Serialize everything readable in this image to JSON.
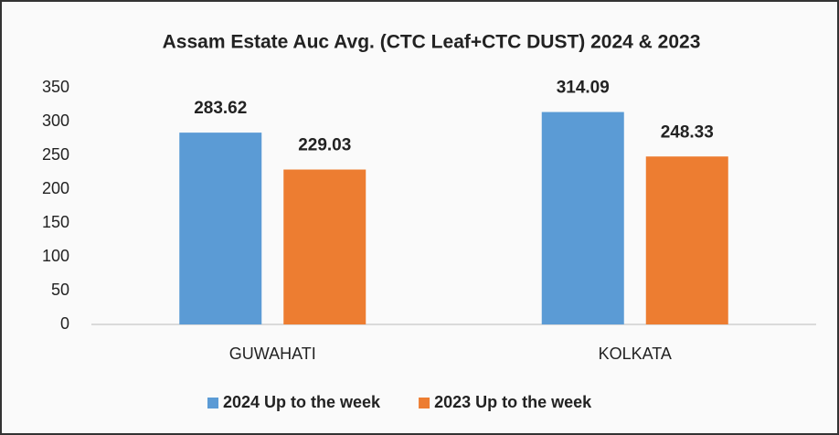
{
  "chart_data": {
    "type": "bar",
    "title": "Assam Estate Auc Avg. (CTC Leaf+CTC DUST) 2024 & 2023",
    "categories": [
      "GUWAHATI",
      "KOLKATA"
    ],
    "series": [
      {
        "name": "2024 Up to the week",
        "color": "#5b9bd5",
        "values": [
          283.62,
          314.09
        ]
      },
      {
        "name": "2023 Up to the week",
        "color": "#ed7d31",
        "values": [
          229.03,
          248.33
        ]
      }
    ],
    "ylim": [
      0,
      350
    ],
    "yticks": [
      0,
      50,
      100,
      150,
      200,
      250,
      300,
      350
    ],
    "grid": false,
    "legend": "bottom"
  }
}
